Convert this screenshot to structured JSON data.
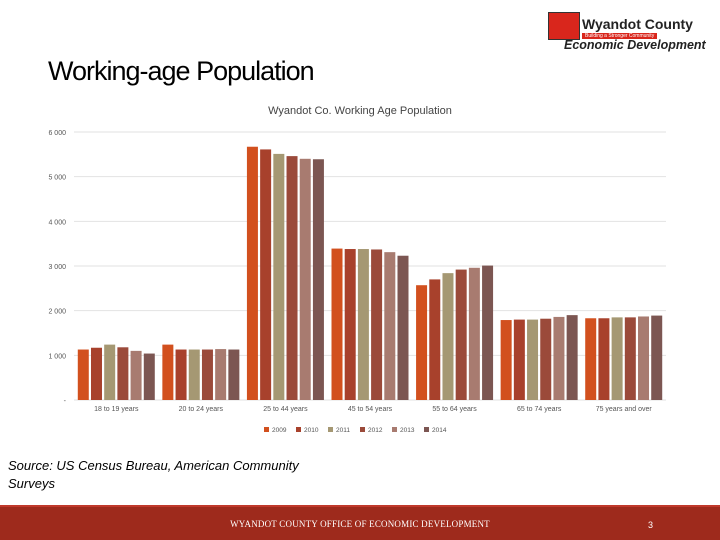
{
  "header": {
    "logo_name": "Wyandot County",
    "logo_tagline": "Building a Stronger Community",
    "logo_subtitle": "Economic Development"
  },
  "slide_title": "Working-age Population",
  "source": "Source: US Census Bureau, American Community Surveys",
  "footer": {
    "text": "WYANDOT COUNTY OFFICE OF ECONOMIC DEVELOPMENT",
    "page": "3"
  },
  "colors": [
    "#d2501e",
    "#a8412c",
    "#a59873",
    "#9b4a3a",
    "#a87b70",
    "#7c5652"
  ],
  "chart_data": {
    "type": "bar",
    "title": "Wyandot Co. Working Age Population",
    "categories": [
      "18 to 19 years",
      "20 to 24 years",
      "25 to 44 years",
      "45 to 54 years",
      "55 to 64 years",
      "65 to 74 years",
      "75 years and over"
    ],
    "series": [
      {
        "name": "2009",
        "values": [
          1130,
          1240,
          5670,
          3390,
          2570,
          1790,
          1830
        ]
      },
      {
        "name": "2010",
        "values": [
          1170,
          1130,
          5610,
          3380,
          2700,
          1800,
          1830
        ]
      },
      {
        "name": "2011",
        "values": [
          1240,
          1130,
          5510,
          3380,
          2840,
          1800,
          1850
        ]
      },
      {
        "name": "2012",
        "values": [
          1180,
          1130,
          5460,
          3370,
          2920,
          1820,
          1850
        ]
      },
      {
        "name": "2013",
        "values": [
          1100,
          1140,
          5400,
          3310,
          2960,
          1860,
          1870
        ]
      },
      {
        "name": "2014",
        "values": [
          1040,
          1130,
          5390,
          3230,
          3010,
          1900,
          1890
        ]
      }
    ],
    "y_ticks": [
      {
        "value": 0,
        "label": "-"
      },
      {
        "value": 1000,
        "label": "1 000"
      },
      {
        "value": 2000,
        "label": "2 000"
      },
      {
        "value": 3000,
        "label": "3 000"
      },
      {
        "value": 4000,
        "label": "4 000"
      },
      {
        "value": 5000,
        "label": "5 000"
      },
      {
        "value": 6000,
        "label": "6 000"
      }
    ],
    "ylim": [
      0,
      6000
    ],
    "xlabel": "",
    "ylabel": "",
    "grid": true,
    "legend": "bottom"
  }
}
